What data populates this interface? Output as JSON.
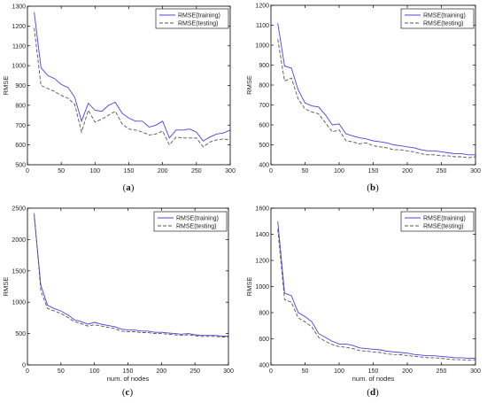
{
  "colors": {
    "training_line": "#4444dd",
    "testing_line": "#555555",
    "axes": "#000000"
  },
  "chart_data": [
    {
      "panel_label_left": "(",
      "panel_label_letter": "a",
      "panel_label_right": ")",
      "type": "line",
      "xlabel": "",
      "ylabel": "RMSE",
      "xlim": [
        0,
        300
      ],
      "ylim": [
        500,
        1300
      ],
      "xticks": [
        "0",
        "50",
        "100",
        "150",
        "200",
        "250",
        "300"
      ],
      "yticks": [
        "500",
        "600",
        "700",
        "800",
        "900",
        "1000",
        "1100",
        "1200",
        "1300"
      ],
      "legend_position": "top-right",
      "series": [
        {
          "name": "RMSE(training)",
          "style": "solid",
          "x": [
            10,
            20,
            30,
            40,
            50,
            60,
            70,
            80,
            90,
            100,
            110,
            120,
            130,
            140,
            150,
            160,
            170,
            180,
            190,
            200,
            210,
            220,
            230,
            240,
            250,
            260,
            270,
            280,
            290,
            300
          ],
          "y": [
            1270,
            990,
            950,
            935,
            905,
            890,
            840,
            720,
            810,
            775,
            770,
            800,
            815,
            760,
            735,
            720,
            720,
            690,
            700,
            720,
            635,
            675,
            675,
            680,
            665,
            620,
            640,
            655,
            660,
            675
          ]
        },
        {
          "name": "RMSE(testing)",
          "style": "dashed",
          "x": [
            10,
            20,
            30,
            40,
            50,
            60,
            70,
            80,
            90,
            100,
            110,
            120,
            130,
            140,
            150,
            160,
            170,
            180,
            190,
            200,
            210,
            220,
            230,
            240,
            250,
            260,
            270,
            280,
            290,
            300
          ],
          "y": [
            1190,
            900,
            885,
            870,
            850,
            835,
            805,
            665,
            775,
            715,
            730,
            750,
            770,
            705,
            680,
            675,
            665,
            650,
            655,
            670,
            600,
            640,
            635,
            635,
            635,
            590,
            615,
            625,
            630,
            625
          ]
        }
      ]
    },
    {
      "panel_label_left": "(",
      "panel_label_letter": "b",
      "panel_label_right": ")",
      "type": "line",
      "xlabel": "",
      "ylabel": "RMSE",
      "xlim": [
        0,
        300
      ],
      "ylim": [
        400,
        1200
      ],
      "xticks": [
        "0",
        "50",
        "100",
        "150",
        "200",
        "250",
        "300"
      ],
      "yticks": [
        "400",
        "500",
        "600",
        "700",
        "800",
        "900",
        "1000",
        "1100",
        "1200"
      ],
      "legend_position": "top-right",
      "series": [
        {
          "name": "RMSE(training)",
          "style": "solid",
          "x": [
            10,
            20,
            30,
            40,
            50,
            60,
            70,
            80,
            90,
            100,
            110,
            120,
            130,
            140,
            150,
            160,
            170,
            180,
            190,
            200,
            210,
            220,
            230,
            240,
            250,
            260,
            270,
            280,
            290,
            300
          ],
          "y": [
            1110,
            895,
            885,
            775,
            710,
            695,
            690,
            650,
            600,
            605,
            555,
            545,
            535,
            530,
            520,
            515,
            510,
            500,
            495,
            490,
            485,
            475,
            470,
            470,
            465,
            460,
            455,
            455,
            450,
            450
          ]
        },
        {
          "name": "RMSE(testing)",
          "style": "dashed",
          "x": [
            10,
            20,
            30,
            40,
            50,
            60,
            70,
            80,
            90,
            100,
            110,
            120,
            130,
            140,
            150,
            160,
            170,
            180,
            190,
            200,
            210,
            220,
            230,
            240,
            250,
            260,
            270,
            280,
            290,
            300
          ],
          "y": [
            1030,
            820,
            835,
            730,
            680,
            665,
            655,
            610,
            565,
            575,
            520,
            515,
            505,
            510,
            495,
            490,
            485,
            475,
            475,
            470,
            465,
            455,
            450,
            450,
            445,
            445,
            440,
            440,
            435,
            440
          ]
        }
      ]
    },
    {
      "panel_label_left": "(",
      "panel_label_letter": "c",
      "panel_label_right": ")",
      "type": "line",
      "xlabel": "num. of nodes",
      "ylabel": "RMSE",
      "xlim": [
        0,
        300
      ],
      "ylim": [
        0,
        2500
      ],
      "xticks": [
        "0",
        "50",
        "100",
        "150",
        "200",
        "250",
        "300"
      ],
      "yticks": [
        "0",
        "500",
        "1000",
        "1500",
        "2000",
        "2500"
      ],
      "legend_position": "top-right",
      "series": [
        {
          "name": "RMSE(training)",
          "style": "solid",
          "x": [
            10,
            20,
            30,
            40,
            50,
            60,
            70,
            80,
            90,
            100,
            110,
            120,
            130,
            140,
            150,
            160,
            170,
            180,
            190,
            200,
            210,
            220,
            230,
            240,
            250,
            260,
            270,
            280,
            290,
            300
          ],
          "y": [
            2380,
            1270,
            950,
            900,
            860,
            800,
            720,
            690,
            650,
            680,
            650,
            630,
            610,
            570,
            560,
            555,
            540,
            540,
            520,
            520,
            510,
            500,
            490,
            500,
            480,
            470,
            470,
            470,
            460,
            460
          ]
        },
        {
          "name": "RMSE(testing)",
          "style": "dashed",
          "x": [
            10,
            20,
            30,
            40,
            50,
            60,
            70,
            80,
            90,
            100,
            110,
            120,
            130,
            140,
            150,
            160,
            170,
            180,
            190,
            200,
            210,
            220,
            230,
            240,
            250,
            260,
            270,
            280,
            290,
            300
          ],
          "y": [
            2420,
            1180,
            900,
            860,
            820,
            760,
            690,
            660,
            620,
            640,
            620,
            600,
            580,
            540,
            530,
            530,
            515,
            515,
            500,
            500,
            490,
            480,
            470,
            480,
            465,
            455,
            455,
            455,
            445,
            445
          ]
        }
      ]
    },
    {
      "panel_label_left": "(",
      "panel_label_letter": "d",
      "panel_label_right": ")",
      "type": "line",
      "xlabel": "num. of nodes",
      "ylabel": "RMSE",
      "xlim": [
        0,
        300
      ],
      "ylim": [
        400,
        1600
      ],
      "xticks": [
        "0",
        "50",
        "100",
        "150",
        "200",
        "250",
        "300"
      ],
      "yticks": [
        "400",
        "600",
        "800",
        "1000",
        "1200",
        "1400",
        "1600"
      ],
      "legend_position": "top-right",
      "series": [
        {
          "name": "RMSE(training)",
          "style": "solid",
          "x": [
            10,
            20,
            30,
            40,
            50,
            60,
            70,
            80,
            90,
            100,
            110,
            120,
            130,
            140,
            150,
            160,
            170,
            180,
            190,
            200,
            210,
            220,
            230,
            240,
            250,
            260,
            270,
            280,
            290,
            300
          ],
          "y": [
            1500,
            950,
            930,
            800,
            770,
            730,
            640,
            610,
            580,
            560,
            560,
            550,
            530,
            525,
            520,
            515,
            505,
            500,
            495,
            490,
            480,
            475,
            470,
            470,
            465,
            460,
            455,
            455,
            450,
            450
          ]
        },
        {
          "name": "RMSE(testing)",
          "style": "dashed",
          "x": [
            10,
            20,
            30,
            40,
            50,
            60,
            70,
            80,
            90,
            100,
            110,
            120,
            130,
            140,
            150,
            160,
            170,
            180,
            190,
            200,
            210,
            220,
            230,
            240,
            250,
            260,
            270,
            280,
            290,
            300
          ],
          "y": [
            1440,
            900,
            880,
            760,
            730,
            690,
            610,
            580,
            555,
            540,
            535,
            525,
            510,
            505,
            500,
            495,
            485,
            480,
            478,
            472,
            465,
            460,
            455,
            455,
            450,
            445,
            440,
            440,
            435,
            440
          ]
        }
      ]
    }
  ]
}
